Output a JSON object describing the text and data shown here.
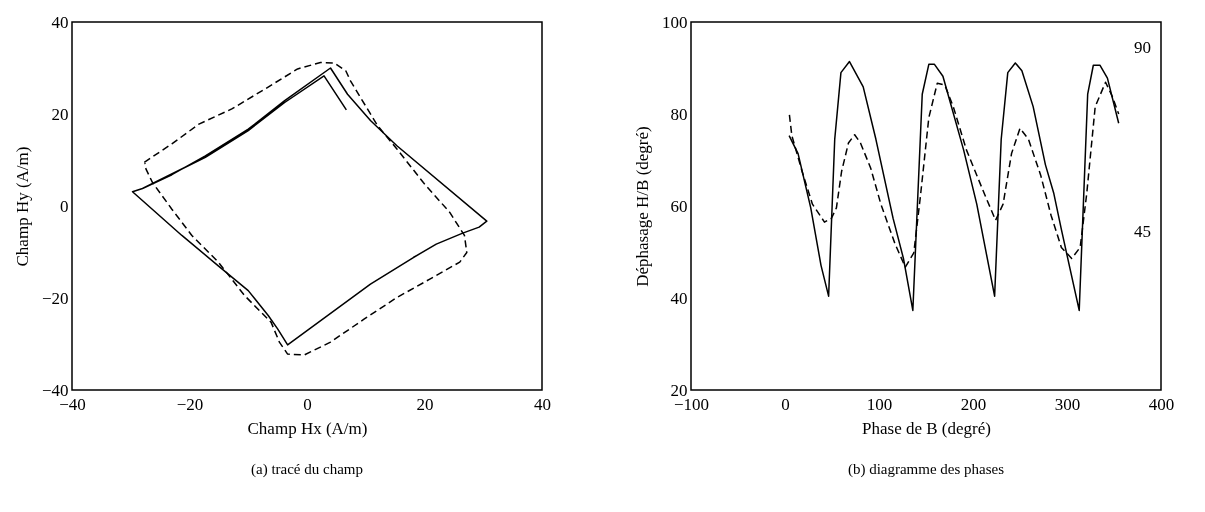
{
  "chart_data": [
    {
      "type": "line",
      "title": "(a) tracé du champ",
      "xlabel": "Champ Hx (A/m)",
      "ylabel": "Champ Hy (A/m)",
      "xlim": [
        -40,
        40
      ],
      "ylim": [
        -40,
        40
      ],
      "xticks": [
        -40,
        -20,
        0,
        20,
        40
      ],
      "yticks": [
        -40,
        -20,
        0,
        20,
        40
      ],
      "series": [
        {
          "color": "#000000",
          "line_style": "solid",
          "x": [
            -29.7,
            -28.0,
            -23.0,
            -17.3,
            -10.0,
            -3.8,
            4.0,
            6.9,
            10.8,
            15.3,
            30.6,
            29.3,
            26.5,
            22.0,
            18.1,
            10.8,
            -3.3,
            -5.0,
            -6.6,
            -10.0,
            -15.1,
            -21.3,
            -29.7,
            -28.0,
            -17.3,
            -10.0,
            -3.8,
            2.9,
            6.7
          ],
          "values": [
            3.1,
            3.8,
            6.8,
            10.9,
            16.7,
            22.9,
            30.0,
            24.3,
            18.6,
            13.1,
            -3.3,
            -4.6,
            -5.9,
            -8.3,
            -11.2,
            -17.0,
            -30.2,
            -26.7,
            -23.8,
            -18.4,
            -13.0,
            -6.4,
            3.1,
            3.8,
            10.6,
            16.4,
            22.5,
            28.3,
            20.9
          ]
        },
        {
          "color": "#000000",
          "line_style": "dashed",
          "x": [
            -27.7,
            -23.0,
            -18.4,
            -12.8,
            -7.2,
            -1.6,
            2.3,
            4.6,
            6.6,
            7.4,
            9.1,
            12.0,
            15.3,
            19.8,
            24.3,
            26.8,
            27.2,
            26.0,
            20.9,
            15.3,
            9.7,
            4.0,
            -0.5,
            -3.3,
            -4.7,
            -6.1,
            -10.6,
            -15.1,
            -19.6,
            -23.0,
            -26.3,
            -27.4,
            -27.6
          ],
          "values": [
            9.5,
            13.5,
            17.8,
            21.1,
            25.4,
            29.8,
            31.2,
            31.1,
            29.4,
            27.2,
            23.6,
            17.5,
            12.4,
            5.1,
            -1.4,
            -6.4,
            -10.1,
            -12.2,
            -15.9,
            -19.9,
            -24.6,
            -29.6,
            -32.4,
            -32.2,
            -29.6,
            -25.3,
            -19.5,
            -12.2,
            -6.4,
            -0.7,
            5.1,
            8.0,
            9.3
          ]
        }
      ]
    },
    {
      "type": "line",
      "title": "(b) diagramme des phases",
      "xlabel": "Phase de B (degré)",
      "ylabel": "Déphasage H/B (degré)",
      "xlim": [
        -100,
        400
      ],
      "ylim": [
        20,
        100
      ],
      "xticks": [
        -100,
        0,
        100,
        200,
        300,
        400
      ],
      "yticks": [
        20,
        40,
        60,
        80,
        100
      ],
      "annotations": [
        "90",
        "45"
      ],
      "series": [
        {
          "color": "#000000",
          "line_style": "solid",
          "x": [
            4.4,
            13.9,
            27.4,
            38.3,
            46.4,
            52.9,
            59.5,
            68.6,
            83.2,
            96.7,
            115,
            126,
            136,
            146,
            153,
            159,
            168,
            190,
            204,
            223,
            230,
            237,
            245,
            252,
            264,
            277,
            286,
            294,
            313,
            322,
            328,
            335,
            343,
            355
          ],
          "values": [
            75.3,
            71.4,
            59.6,
            47.1,
            40.4,
            74.5,
            89.0,
            91.4,
            85.9,
            74.5,
            57.3,
            48.6,
            37.3,
            84.3,
            90.8,
            90.8,
            88.2,
            72.2,
            60.4,
            40.4,
            74.5,
            89.0,
            91.1,
            89.4,
            81.6,
            69.0,
            62.7,
            54.9,
            37.3,
            84.3,
            90.6,
            90.6,
            87.8,
            78.0
          ]
        },
        {
          "color": "#000000",
          "line_style": "dashed",
          "x": [
            4.7,
            7.3,
            18.2,
            29.2,
            42.0,
            49.3,
            54.7,
            60.2,
            67.5,
            74.1,
            80.3,
            91.2,
            102,
            117,
            128,
            137,
            144,
            153,
            162,
            170,
            179,
            193,
            212,
            224,
            232,
            241,
            250,
            259,
            272,
            283,
            294,
            305,
            314,
            321,
            330,
            341,
            348,
            355
          ],
          "values": [
            79.8,
            75.3,
            67.5,
            60.4,
            56.5,
            57.3,
            59.6,
            67.5,
            73.7,
            75.5,
            73.7,
            68.2,
            60.4,
            51.8,
            46.7,
            49.8,
            62.0,
            79.2,
            86.7,
            86.3,
            81.6,
            72.2,
            62.7,
            56.9,
            60.4,
            71.4,
            76.9,
            74.5,
            66.7,
            58.0,
            51.0,
            48.6,
            51.0,
            62.7,
            81.6,
            86.9,
            83.9,
            80.0
          ]
        }
      ]
    }
  ]
}
